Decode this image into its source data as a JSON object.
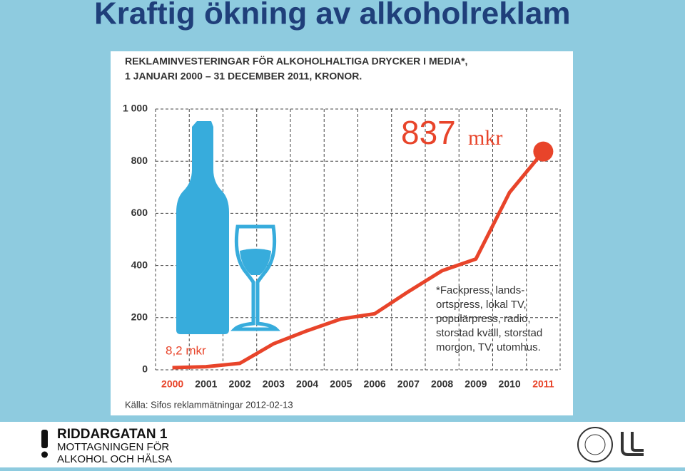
{
  "header": {
    "title": "Kraftig ökning av alkoholreklam"
  },
  "chart_data": {
    "type": "line",
    "title": [
      "REKLAMINVESTERINGAR FÖR ALKOHOLHALTIGA DRYCKER I MEDIA*,",
      "1 JANUARI 2000 – 31 DECEMBER 2011, KRONOR."
    ],
    "categories": [
      "2000",
      "2001",
      "2002",
      "2003",
      "2004",
      "2005",
      "2006",
      "2007",
      "2008",
      "2009",
      "2010",
      "2011"
    ],
    "series": [
      {
        "name": "Reklaminvesteringar",
        "color": "#e8442a",
        "values": [
          8.2,
          12,
          25,
          100,
          150,
          195,
          215,
          300,
          380,
          425,
          680,
          837
        ]
      }
    ],
    "ylim": [
      0,
      1000
    ],
    "yticks": [
      0,
      200,
      400,
      600,
      800,
      {
        "value": 1000,
        "label": "1 000"
      }
    ],
    "grid": true,
    "start_label": "8,2 mkr",
    "end_label": [
      "837",
      "mkr"
    ],
    "footnote": [
      "*Fackpress, lands-",
      "ortspress, lokal TV,",
      "populärpress, radio,",
      "storstad kväll, storstad",
      "morgon, TV, utomhus."
    ],
    "source": "Källa: Sifos reklammätningar 2012-02-13"
  },
  "footer": {
    "logo": [
      "RIDDARGATAN 1",
      "MOTTAGNINGEN FÖR",
      "ALKOHOL OCH HÄLSA"
    ]
  }
}
